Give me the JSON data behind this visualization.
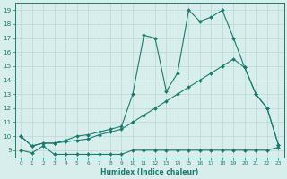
{
  "line1_x": [
    0,
    1,
    2,
    3,
    4,
    5,
    6,
    7,
    8,
    9,
    10,
    11,
    12,
    13,
    14,
    15,
    16,
    17,
    18,
    19,
    20,
    21,
    22,
    23
  ],
  "line1_y": [
    9.0,
    8.8,
    9.3,
    8.7,
    8.7,
    8.7,
    8.7,
    8.7,
    8.7,
    8.7,
    9.0,
    9.0,
    9.0,
    9.0,
    9.0,
    9.0,
    9.0,
    9.0,
    9.0,
    9.0,
    9.0,
    9.0,
    9.0,
    9.2
  ],
  "line2_x": [
    0,
    1,
    2,
    3,
    4,
    5,
    6,
    7,
    8,
    9,
    10,
    11,
    12,
    13,
    14,
    15,
    16,
    17,
    18,
    19,
    20,
    21,
    22,
    23
  ],
  "line2_y": [
    10.0,
    9.3,
    9.5,
    9.5,
    9.6,
    9.7,
    9.8,
    10.1,
    10.3,
    10.5,
    11.0,
    11.5,
    12.0,
    12.5,
    13.0,
    13.5,
    14.0,
    14.5,
    15.0,
    15.5,
    14.9,
    13.0,
    12.0,
    9.4
  ],
  "line3_x": [
    0,
    1,
    2,
    3,
    4,
    5,
    6,
    7,
    8,
    9,
    10,
    11,
    12,
    13,
    14,
    15,
    16,
    17,
    18,
    19,
    20,
    21,
    22,
    23
  ],
  "line3_y": [
    10.0,
    9.3,
    9.5,
    9.5,
    9.7,
    10.0,
    10.1,
    10.3,
    10.5,
    10.7,
    13.0,
    17.2,
    17.0,
    13.2,
    14.5,
    19.0,
    18.2,
    18.5,
    19.0,
    17.0,
    14.9,
    13.0,
    12.0,
    9.4
  ],
  "color": "#1a7a6e",
  "bg_color": "#d8eeec",
  "grid_color": "#b8d8d4",
  "xlabel": "Humidex (Indice chaleur)",
  "xlim": [
    -0.5,
    23.5
  ],
  "ylim": [
    8.5,
    19.5
  ],
  "yticks": [
    9,
    10,
    11,
    12,
    13,
    14,
    15,
    16,
    17,
    18,
    19
  ],
  "xticks": [
    0,
    1,
    2,
    3,
    4,
    5,
    6,
    7,
    8,
    9,
    10,
    11,
    12,
    13,
    14,
    15,
    16,
    17,
    18,
    19,
    20,
    21,
    22,
    23
  ]
}
